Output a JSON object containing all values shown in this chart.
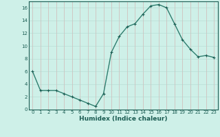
{
  "x": [
    0,
    1,
    2,
    3,
    4,
    5,
    6,
    7,
    8,
    9,
    10,
    11,
    12,
    13,
    14,
    15,
    16,
    17,
    18,
    19,
    20,
    21,
    22,
    23
  ],
  "y": [
    6,
    3,
    3,
    3,
    2.5,
    2,
    1.5,
    1,
    0.5,
    2.5,
    9,
    11.5,
    13,
    13.5,
    15,
    16.3,
    16.5,
    16,
    13.5,
    11,
    9.5,
    8.3,
    8.5,
    8.2
  ],
  "line_color": "#2e7d6e",
  "marker": "+",
  "marker_size": 3,
  "line_width": 1.0,
  "bg_color": "#cef0e8",
  "grid_color": "#b0d4cc",
  "grid_color2": "#d4a0a0",
  "xlabel": "Humidex (Indice chaleur)",
  "ylim": [
    0,
    17
  ],
  "xlim": [
    -0.5,
    23.5
  ],
  "yticks": [
    0,
    2,
    4,
    6,
    8,
    10,
    12,
    14,
    16
  ],
  "xticks": [
    0,
    1,
    2,
    3,
    4,
    5,
    6,
    7,
    8,
    9,
    10,
    11,
    12,
    13,
    14,
    15,
    16,
    17,
    18,
    19,
    20,
    21,
    22,
    23
  ],
  "tick_fontsize": 5.0,
  "xlabel_fontsize": 6.5,
  "tick_color": "#1a5c52",
  "axis_color": "#1a5c52",
  "marker_color": "#1a5c52"
}
